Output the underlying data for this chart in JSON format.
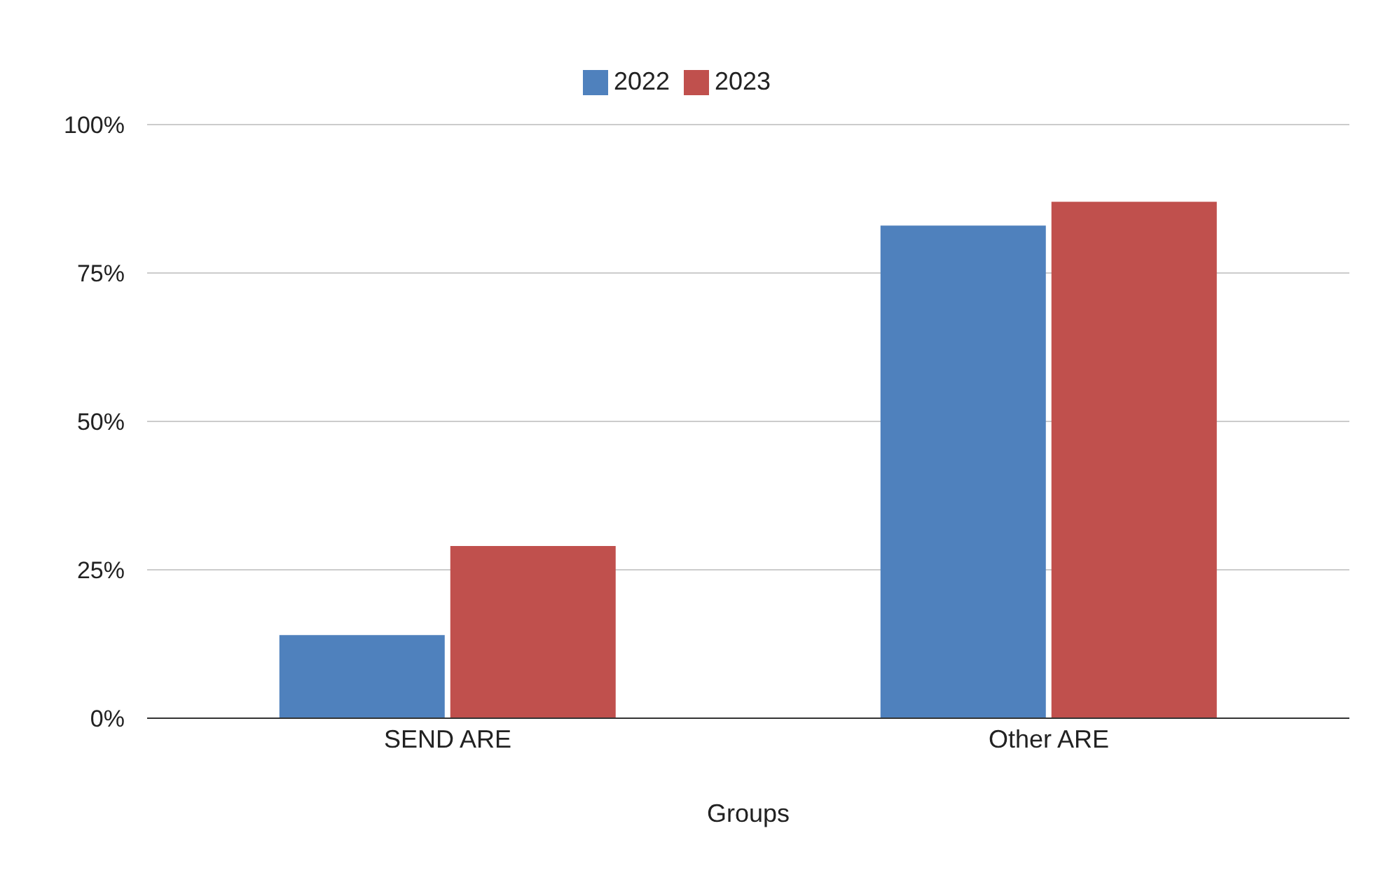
{
  "chart_data": {
    "type": "bar",
    "xlabel": "Groups",
    "categories": [
      "SEND ARE",
      "Other ARE"
    ],
    "series": [
      {
        "name": "2022",
        "color": "#4f81bd",
        "values": [
          14,
          83
        ]
      },
      {
        "name": "2023",
        "color": "#c0504d",
        "values": [
          29,
          87
        ]
      }
    ],
    "ylim": [
      0,
      100
    ],
    "yticks": [
      {
        "value": 0,
        "label": "0%"
      },
      {
        "value": 25,
        "label": "25%"
      },
      {
        "value": 50,
        "label": "50%"
      },
      {
        "value": 75,
        "label": "75%"
      },
      {
        "value": 100,
        "label": "100%"
      }
    ],
    "grid": "y",
    "legend": "top"
  }
}
